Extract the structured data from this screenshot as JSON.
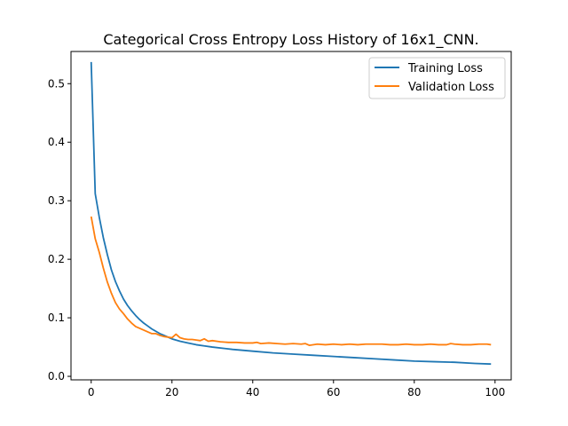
{
  "chart_data": {
    "type": "line",
    "title": "Categorical Cross Entropy Loss History of 16x1_CNN.",
    "xlabel": "",
    "ylabel": "",
    "xlim": [
      -5,
      104
    ],
    "ylim": [
      -0.006,
      0.555
    ],
    "xticks": [
      0,
      20,
      40,
      60,
      80,
      100
    ],
    "yticks": [
      0.0,
      0.1,
      0.2,
      0.3,
      0.4,
      0.5
    ],
    "grid": false,
    "legend_position": "top-right",
    "series": [
      {
        "name": "Training Loss",
        "color": "#1f77b4",
        "x": [
          0,
          1,
          2,
          3,
          4,
          5,
          6,
          7,
          8,
          9,
          10,
          11,
          12,
          13,
          14,
          15,
          16,
          17,
          18,
          19,
          20,
          22,
          24,
          26,
          28,
          30,
          35,
          40,
          45,
          50,
          55,
          60,
          65,
          70,
          75,
          80,
          85,
          90,
          95,
          99
        ],
        "values": [
          0.537,
          0.312,
          0.272,
          0.237,
          0.208,
          0.182,
          0.162,
          0.146,
          0.132,
          0.121,
          0.112,
          0.104,
          0.097,
          0.091,
          0.086,
          0.081,
          0.077,
          0.073,
          0.07,
          0.067,
          0.064,
          0.06,
          0.057,
          0.054,
          0.052,
          0.05,
          0.046,
          0.043,
          0.04,
          0.038,
          0.036,
          0.034,
          0.032,
          0.03,
          0.028,
          0.026,
          0.025,
          0.024,
          0.022,
          0.021
        ]
      },
      {
        "name": "Validation Loss",
        "color": "#ff7f0e",
        "x": [
          0,
          1,
          2,
          3,
          4,
          5,
          6,
          7,
          8,
          9,
          10,
          11,
          12,
          13,
          14,
          15,
          16,
          17,
          18,
          19,
          20,
          21,
          22,
          23,
          24,
          25,
          26,
          27,
          28,
          29,
          30,
          32,
          34,
          36,
          38,
          40,
          41,
          42,
          44,
          46,
          48,
          50,
          52,
          53,
          54,
          56,
          58,
          60,
          62,
          64,
          66,
          68,
          70,
          72,
          74,
          76,
          78,
          80,
          82,
          84,
          86,
          88,
          89,
          90,
          92,
          94,
          96,
          98,
          99
        ],
        "values": [
          0.273,
          0.235,
          0.212,
          0.185,
          0.161,
          0.142,
          0.126,
          0.115,
          0.107,
          0.098,
          0.091,
          0.085,
          0.082,
          0.079,
          0.076,
          0.073,
          0.073,
          0.07,
          0.068,
          0.067,
          0.066,
          0.072,
          0.066,
          0.064,
          0.063,
          0.063,
          0.062,
          0.061,
          0.064,
          0.06,
          0.061,
          0.059,
          0.058,
          0.058,
          0.057,
          0.057,
          0.058,
          0.056,
          0.057,
          0.056,
          0.055,
          0.056,
          0.055,
          0.056,
          0.053,
          0.055,
          0.054,
          0.055,
          0.054,
          0.055,
          0.054,
          0.055,
          0.055,
          0.055,
          0.054,
          0.054,
          0.055,
          0.054,
          0.054,
          0.055,
          0.054,
          0.054,
          0.056,
          0.055,
          0.054,
          0.054,
          0.055,
          0.055,
          0.054
        ]
      }
    ]
  }
}
